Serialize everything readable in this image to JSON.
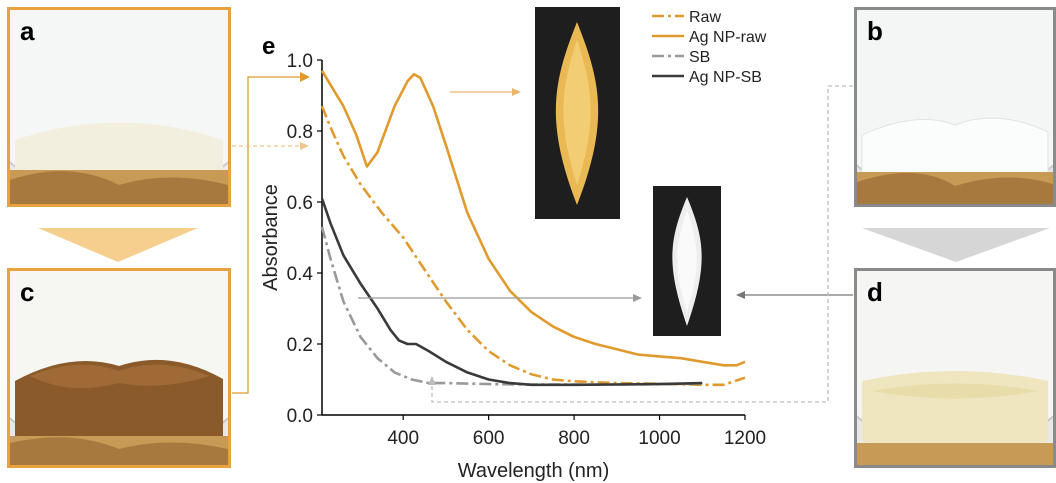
{
  "panels": {
    "a": {
      "letter": "a"
    },
    "b": {
      "letter": "b"
    },
    "c": {
      "letter": "c"
    },
    "d": {
      "letter": "d"
    },
    "e": {
      "letter": "e"
    }
  },
  "colors": {
    "raw": "#E09A2D",
    "ag_np_raw": "#E09A2D",
    "sb": "#999999",
    "ag_np_sb": "#3a3a3a",
    "orange_frame": "#E8A33E",
    "gray_frame": "#8a8a8a"
  },
  "chart_data": {
    "type": "line",
    "xlabel": "Wavelength (nm)",
    "ylabel": "Absorbance",
    "xlim": [
      210,
      1200
    ],
    "ylim": [
      0.0,
      1.0
    ],
    "xticks": [
      400,
      600,
      800,
      1000,
      1200
    ],
    "xtick_labels": [
      "400",
      "600",
      "800",
      "1000",
      "1200"
    ],
    "yticks": [
      0.0,
      0.2,
      0.4,
      0.6,
      0.8,
      1.0
    ],
    "ytick_labels": [
      "0.0",
      "0.2",
      "0.4",
      "0.6",
      "0.8",
      "1.0"
    ],
    "grid": false,
    "legend_position": "top-right",
    "series": [
      {
        "name": "Raw",
        "style": "dashdot",
        "color": "#E09A2D",
        "points": [
          [
            210,
            0.87
          ],
          [
            230,
            0.81
          ],
          [
            260,
            0.73
          ],
          [
            300,
            0.65
          ],
          [
            350,
            0.57
          ],
          [
            400,
            0.5
          ],
          [
            450,
            0.41
          ],
          [
            500,
            0.32
          ],
          [
            550,
            0.24
          ],
          [
            600,
            0.18
          ],
          [
            650,
            0.14
          ],
          [
            700,
            0.115
          ],
          [
            750,
            0.1
          ],
          [
            800,
            0.095
          ],
          [
            900,
            0.09
          ],
          [
            1000,
            0.088
          ],
          [
            1100,
            0.085
          ],
          [
            1150,
            0.085
          ],
          [
            1200,
            0.105
          ]
        ]
      },
      {
        "name": "Ag NP-raw",
        "style": "solid",
        "color": "#E09A2D",
        "points": [
          [
            210,
            0.97
          ],
          [
            230,
            0.93
          ],
          [
            260,
            0.87
          ],
          [
            290,
            0.79
          ],
          [
            315,
            0.7
          ],
          [
            340,
            0.74
          ],
          [
            380,
            0.87
          ],
          [
            410,
            0.94
          ],
          [
            425,
            0.96
          ],
          [
            440,
            0.95
          ],
          [
            470,
            0.87
          ],
          [
            500,
            0.76
          ],
          [
            550,
            0.57
          ],
          [
            600,
            0.44
          ],
          [
            650,
            0.35
          ],
          [
            700,
            0.29
          ],
          [
            750,
            0.25
          ],
          [
            800,
            0.22
          ],
          [
            850,
            0.2
          ],
          [
            900,
            0.185
          ],
          [
            950,
            0.17
          ],
          [
            1000,
            0.165
          ],
          [
            1050,
            0.16
          ],
          [
            1100,
            0.15
          ],
          [
            1150,
            0.14
          ],
          [
            1180,
            0.14
          ],
          [
            1200,
            0.15
          ]
        ]
      },
      {
        "name": "SB",
        "style": "dashdot",
        "color": "#999999",
        "points": [
          [
            210,
            0.53
          ],
          [
            230,
            0.44
          ],
          [
            260,
            0.32
          ],
          [
            300,
            0.22
          ],
          [
            340,
            0.16
          ],
          [
            380,
            0.12
          ],
          [
            420,
            0.1
          ],
          [
            460,
            0.09
          ],
          [
            500,
            0.09
          ],
          [
            600,
            0.087
          ],
          [
            700,
            0.086
          ],
          [
            800,
            0.086
          ],
          [
            900,
            0.086
          ],
          [
            1000,
            0.087
          ],
          [
            1100,
            0.088
          ]
        ]
      },
      {
        "name": "Ag NP-SB",
        "style": "solid",
        "color": "#3a3a3a",
        "points": [
          [
            210,
            0.61
          ],
          [
            230,
            0.54
          ],
          [
            260,
            0.45
          ],
          [
            300,
            0.37
          ],
          [
            340,
            0.3
          ],
          [
            370,
            0.24
          ],
          [
            390,
            0.21
          ],
          [
            410,
            0.2
          ],
          [
            430,
            0.2
          ],
          [
            460,
            0.18
          ],
          [
            500,
            0.15
          ],
          [
            550,
            0.12
          ],
          [
            600,
            0.1
          ],
          [
            650,
            0.09
          ],
          [
            700,
            0.085
          ],
          [
            800,
            0.085
          ],
          [
            900,
            0.086
          ],
          [
            1000,
            0.087
          ],
          [
            1100,
            0.09
          ]
        ]
      }
    ]
  }
}
